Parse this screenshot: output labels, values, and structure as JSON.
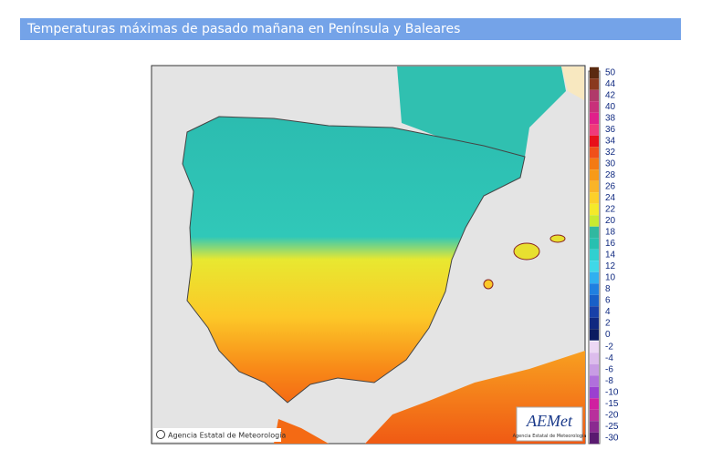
{
  "header": {
    "title": "Temperaturas máximas de pasado mañana en Península y Baleares"
  },
  "map": {
    "copyright": "Agencia Estatal de Meteorología",
    "logo": "AEMet",
    "logo_caption": "Agencia Estatal de Meteorología"
  },
  "legend": {
    "positive": [
      {
        "label": "50",
        "color": "#5a2a10"
      },
      {
        "label": "44",
        "color": "#8a3a1e"
      },
      {
        "label": "42",
        "color": "#b03a6a"
      },
      {
        "label": "40",
        "color": "#c8307a"
      },
      {
        "label": "38",
        "color": "#e0208a"
      },
      {
        "label": "36",
        "color": "#f03a7a"
      },
      {
        "label": "34",
        "color": "#e8101a"
      },
      {
        "label": "32",
        "color": "#f0501a"
      },
      {
        "label": "30",
        "color": "#f47a14"
      },
      {
        "label": "28",
        "color": "#f89a18"
      },
      {
        "label": "26",
        "color": "#fab428"
      },
      {
        "label": "24",
        "color": "#fcd02a"
      },
      {
        "label": "22",
        "color": "#f4ea2a"
      },
      {
        "label": "20",
        "color": "#c8ea30"
      },
      {
        "label": "18",
        "color": "#30b8a0"
      },
      {
        "label": "16",
        "color": "#28c0b0"
      },
      {
        "label": "14",
        "color": "#30d0d0"
      },
      {
        "label": "12",
        "color": "#40d8e8"
      },
      {
        "label": "10",
        "color": "#30b0f0"
      },
      {
        "label": "8",
        "color": "#2080e0"
      },
      {
        "label": "6",
        "color": "#1860c8"
      },
      {
        "label": "4",
        "color": "#1840a8"
      },
      {
        "label": "2",
        "color": "#102880"
      },
      {
        "label": "0",
        "color": "#0a1a60"
      }
    ],
    "negative": [
      {
        "label": "-2",
        "color": "#ecd8f4"
      },
      {
        "label": "-4",
        "color": "#dcbcec"
      },
      {
        "label": "-6",
        "color": "#c89ce4"
      },
      {
        "label": "-8",
        "color": "#b070dc"
      },
      {
        "label": "-10",
        "color": "#9a40d0"
      },
      {
        "label": "-15",
        "color": "#d020a0"
      },
      {
        "label": "-20",
        "color": "#b8309c"
      },
      {
        "label": "-25",
        "color": "#8a2a90"
      },
      {
        "label": "-30",
        "color": "#5a1a70"
      }
    ]
  }
}
